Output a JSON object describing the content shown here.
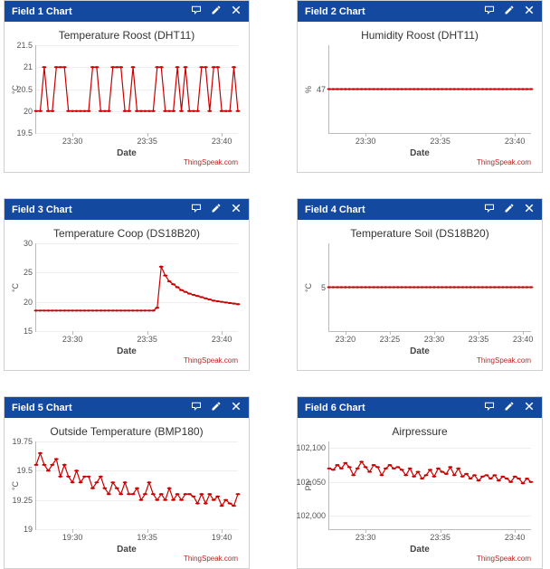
{
  "brand": "ThingSpeak.com",
  "xlabel": "Date",
  "colors": {
    "header_bg": "#1449a0",
    "header_fg": "#ffffff",
    "series": "#c80000",
    "marker": "#c80000",
    "grid": "#eeeeee",
    "axis": "#bbbbbb"
  },
  "style": {
    "line_width": 1.2,
    "marker_radius": 1.6,
    "title_fontsize": 12,
    "tick_fontsize": 9
  },
  "charts": [
    {
      "panel_title": "Field 1 Chart",
      "title": "Temperature Roost (DHT11)",
      "ylabel": "°C",
      "yticks": [
        19.5,
        20,
        20.5,
        21,
        21.5
      ],
      "ylim": [
        19.5,
        21.5
      ],
      "xticks": [
        "23:30",
        "23:35",
        "23:40"
      ],
      "xtick_pos": [
        0.18,
        0.55,
        0.92
      ],
      "data": [
        20,
        20,
        21,
        20,
        20,
        21,
        21,
        21,
        20,
        20,
        20,
        20,
        20,
        20,
        21,
        21,
        20,
        20,
        20,
        21,
        21,
        21,
        20,
        20,
        21,
        20,
        20,
        20,
        20,
        20,
        21,
        21,
        20,
        20,
        20,
        21,
        20,
        21,
        20,
        20,
        20,
        21,
        21,
        20,
        21,
        21,
        20,
        20,
        20,
        21,
        20
      ]
    },
    {
      "panel_title": "Field 2 Chart",
      "title": "Humidity Roost (DHT11)",
      "ylabel": "%",
      "yticks": [
        47
      ],
      "ylim": [
        46,
        48
      ],
      "xticks": [
        "23:30",
        "23:35",
        "23:40"
      ],
      "xtick_pos": [
        0.18,
        0.55,
        0.92
      ],
      "data": [
        47,
        47,
        47,
        47,
        47,
        47,
        47,
        47,
        47,
        47,
        47,
        47,
        47,
        47,
        47,
        47,
        47,
        47,
        47,
        47,
        47,
        47,
        47,
        47,
        47,
        47,
        47,
        47,
        47,
        47,
        47,
        47,
        47,
        47,
        47,
        47,
        47,
        47,
        47,
        47,
        47,
        47,
        47,
        47,
        47,
        47,
        47,
        47,
        47,
        47,
        47
      ]
    },
    {
      "panel_title": "Field 3 Chart",
      "title": "Temperature Coop (DS18B20)",
      "ylabel": "°C",
      "yticks": [
        15,
        20,
        25,
        30
      ],
      "ylim": [
        15,
        30
      ],
      "xticks": [
        "23:30",
        "23:35",
        "23:40"
      ],
      "xtick_pos": [
        0.18,
        0.55,
        0.92
      ],
      "data": [
        18.5,
        18.5,
        18.5,
        18.5,
        18.5,
        18.5,
        18.5,
        18.5,
        18.5,
        18.5,
        18.5,
        18.5,
        18.5,
        18.5,
        18.5,
        18.5,
        18.5,
        18.5,
        18.5,
        18.5,
        18.5,
        18.5,
        18.5,
        18.5,
        18.5,
        18.5,
        18.5,
        18.5,
        18.5,
        18.5,
        19,
        26,
        24.5,
        23.5,
        23,
        22.5,
        22,
        21.7,
        21.4,
        21.2,
        21,
        20.8,
        20.6,
        20.4,
        20.2,
        20.1,
        20,
        19.9,
        19.8,
        19.7,
        19.6
      ]
    },
    {
      "panel_title": "Field 4 Chart",
      "title": "Temperature Soil (DS18B20)",
      "ylabel": "°C",
      "yticks": [
        5
      ],
      "ylim": [
        4,
        6
      ],
      "xticks": [
        "23:20",
        "23:25",
        "23:30",
        "23:35",
        "23:40"
      ],
      "xtick_pos": [
        0.08,
        0.3,
        0.52,
        0.74,
        0.96
      ],
      "data": [
        5,
        5,
        5,
        5,
        5,
        5,
        5,
        5,
        5,
        5,
        5,
        5,
        5,
        5,
        5,
        5,
        5,
        5,
        5,
        5,
        5,
        5,
        5,
        5,
        5,
        5,
        5,
        5,
        5,
        5,
        5,
        5,
        5,
        5,
        5,
        5,
        5,
        5,
        5,
        5,
        5,
        5,
        5,
        5,
        5,
        5,
        5,
        5,
        5,
        5,
        5
      ]
    },
    {
      "panel_title": "Field 5 Chart",
      "title": "Outside Temperature (BMP180)",
      "ylabel": "°C",
      "yticks": [
        19,
        19.25,
        19.5,
        19.75
      ],
      "ylim": [
        19,
        19.75
      ],
      "xticks": [
        "19:30",
        "19:35",
        "19:40"
      ],
      "xtick_pos": [
        0.18,
        0.55,
        0.92
      ],
      "data": [
        19.55,
        19.65,
        19.55,
        19.5,
        19.55,
        19.6,
        19.45,
        19.55,
        19.45,
        19.4,
        19.5,
        19.4,
        19.45,
        19.45,
        19.35,
        19.4,
        19.45,
        19.35,
        19.3,
        19.4,
        19.35,
        19.3,
        19.4,
        19.3,
        19.3,
        19.35,
        19.25,
        19.3,
        19.4,
        19.3,
        19.25,
        19.3,
        19.25,
        19.35,
        19.25,
        19.3,
        19.25,
        19.3,
        19.3,
        19.28,
        19.22,
        19.3,
        19.22,
        19.3,
        19.25,
        19.28,
        19.2,
        19.25,
        19.22,
        19.2,
        19.3
      ]
    },
    {
      "panel_title": "Field 6 Chart",
      "title": "Airpressure",
      "ylabel": "Pa",
      "yticks": [
        102000,
        102050,
        102100
      ],
      "ytick_labels": [
        "102,000",
        "102,050",
        "102,100"
      ],
      "ylim": [
        101980,
        102110
      ],
      "xticks": [
        "23:30",
        "23:35",
        "23:40"
      ],
      "xtick_pos": [
        0.18,
        0.55,
        0.92
      ],
      "data": [
        102070,
        102068,
        102075,
        102070,
        102078,
        102072,
        102060,
        102070,
        102080,
        102072,
        102065,
        102075,
        102072,
        102060,
        102070,
        102075,
        102070,
        102072,
        102068,
        102060,
        102070,
        102058,
        102065,
        102055,
        102060,
        102068,
        102058,
        102070,
        102065,
        102062,
        102072,
        102060,
        102070,
        102058,
        102062,
        102055,
        102060,
        102052,
        102058,
        102060,
        102055,
        102060,
        102052,
        102058,
        102055,
        102050,
        102058,
        102055,
        102048,
        102055,
        102050
      ]
    }
  ]
}
